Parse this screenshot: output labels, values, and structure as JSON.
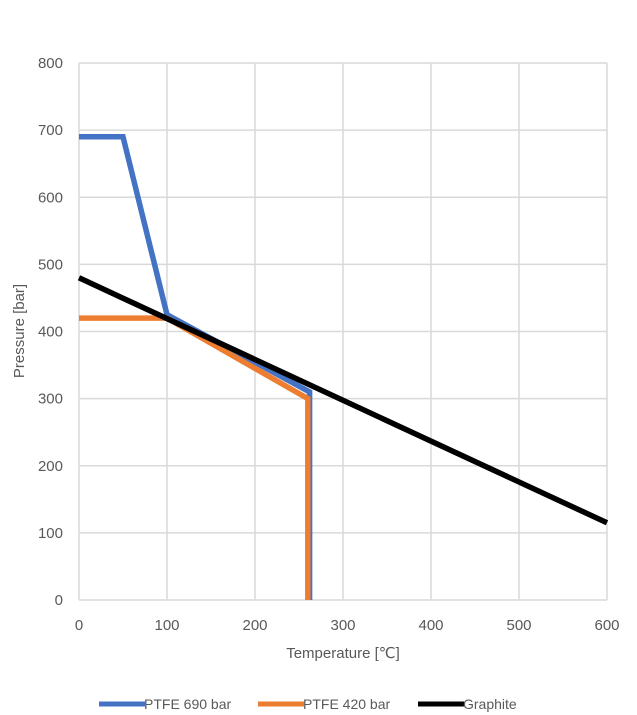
{
  "chart_data": {
    "type": "line",
    "title": "",
    "xlabel": "Temperature [℃]",
    "ylabel": "Pressure [bar]",
    "xlim": [
      0,
      600
    ],
    "ylim": [
      0,
      800
    ],
    "xticks": [
      0,
      100,
      200,
      300,
      400,
      500,
      600
    ],
    "yticks": [
      0,
      100,
      200,
      300,
      400,
      500,
      600,
      700,
      800
    ],
    "grid": true,
    "legend_position": "bottom",
    "series": [
      {
        "name": "PTFE 690 bar",
        "color": "#4472C4",
        "points": [
          [
            0,
            690
          ],
          [
            50,
            690
          ],
          [
            100,
            425
          ],
          [
            262,
            310
          ],
          [
            262,
            0
          ]
        ]
      },
      {
        "name": "PTFE 420 bar",
        "color": "#ED7D31",
        "points": [
          [
            0,
            420
          ],
          [
            100,
            420
          ],
          [
            260,
            300
          ],
          [
            260,
            0
          ]
        ]
      },
      {
        "name": "Graphite",
        "color": "#000000",
        "points": [
          [
            0,
            480
          ],
          [
            600,
            115
          ]
        ]
      }
    ]
  }
}
